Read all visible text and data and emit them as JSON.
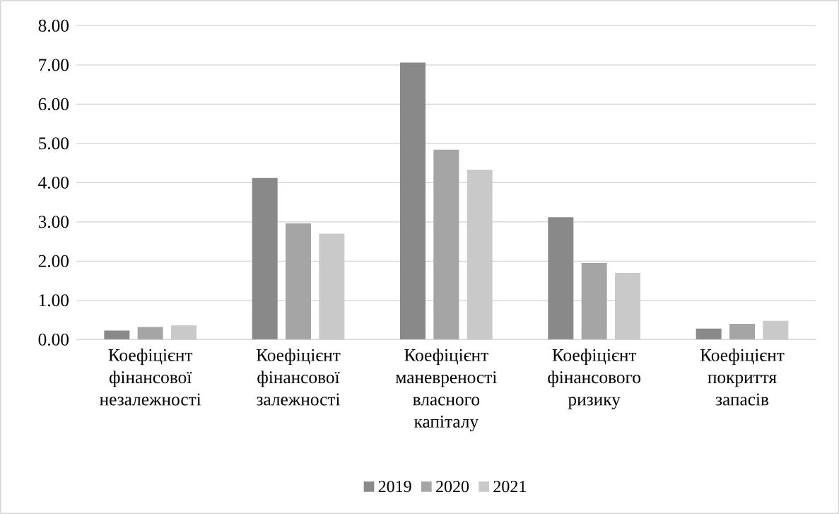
{
  "chart_data": {
    "type": "bar",
    "categories": [
      "Коефіцієнт фінансової незалежності",
      "Коефіцієнт фінансової залежності",
      "Коефіцієнт маневреності власного капіталу",
      "Коефіцієнт фінансового ризику",
      "Коефіцієнт покриття запасів"
    ],
    "series": [
      {
        "name": "2019",
        "color": "#898989",
        "values": [
          0.23,
          4.12,
          7.06,
          3.12,
          0.28
        ]
      },
      {
        "name": "2020",
        "color": "#a5a5a5",
        "values": [
          0.32,
          2.96,
          4.84,
          1.95,
          0.4
        ]
      },
      {
        "name": "2021",
        "color": "#c9c9c9",
        "values": [
          0.36,
          2.7,
          4.33,
          1.7,
          0.48
        ]
      }
    ],
    "ylim": [
      0,
      8
    ],
    "yticks": [
      {
        "value": 0,
        "label": "0.00"
      },
      {
        "value": 1,
        "label": "1.00"
      },
      {
        "value": 2,
        "label": "2.00"
      },
      {
        "value": 3,
        "label": "3.00"
      },
      {
        "value": 4,
        "label": "4.00"
      },
      {
        "value": 5,
        "label": "5.00"
      },
      {
        "value": 6,
        "label": "6.00"
      },
      {
        "value": 7,
        "label": "7.00"
      },
      {
        "value": 8,
        "label": "8.00"
      }
    ],
    "grid": "y",
    "legend": "bottom"
  }
}
